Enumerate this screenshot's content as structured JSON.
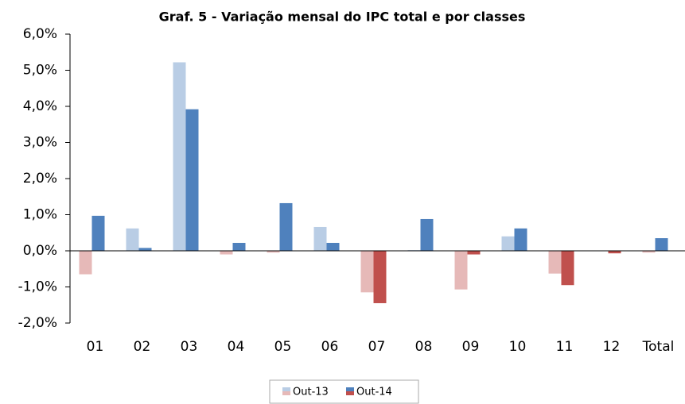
{
  "chart_data": {
    "type": "bar",
    "title": "Graf. 5 - Variação mensal do IPC total e por classes",
    "categories": [
      "01",
      "02",
      "03",
      "04",
      "05",
      "06",
      "07",
      "08",
      "09",
      "10",
      "11",
      "12",
      "Total"
    ],
    "series": [
      {
        "name": "Out-13",
        "color": "#b9cde5",
        "negative_color": "#e6b9b8",
        "values": [
          -0.65,
          0.62,
          5.22,
          -0.1,
          -0.05,
          0.66,
          -1.15,
          0.02,
          -1.07,
          0.4,
          -0.63,
          0,
          -0.05
        ]
      },
      {
        "name": "Out-14",
        "color": "#4f81bd",
        "negative_color": "#c0504d",
        "values": [
          0.97,
          0.08,
          3.92,
          0.22,
          1.32,
          0.22,
          -1.45,
          0.88,
          -0.1,
          0.62,
          -0.95,
          -0.07,
          0.35
        ]
      }
    ],
    "ylim": [
      -2,
      6
    ],
    "yticks": [
      {
        "value": -2,
        "label": "-2,0%"
      },
      {
        "value": -1,
        "label": "-1,0%"
      },
      {
        "value": 0,
        "label": "0,0%"
      },
      {
        "value": 1,
        "label": "1,0%"
      },
      {
        "value": 2,
        "label": "2,0%"
      },
      {
        "value": 3,
        "label": "3,0%"
      },
      {
        "value": 4,
        "label": "4,0%"
      },
      {
        "value": 5,
        "label": "5,0%"
      },
      {
        "value": 6,
        "label": "6,0%"
      }
    ],
    "grid": false,
    "legend": "bottom"
  }
}
